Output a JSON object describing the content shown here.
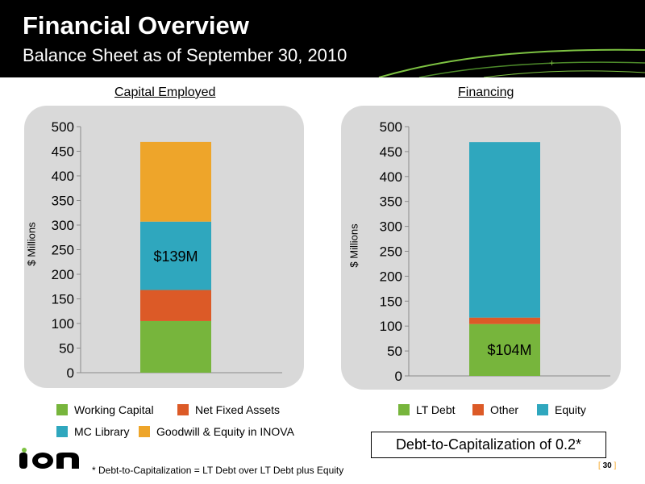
{
  "header": {
    "title": "Financial Overview",
    "subtitle": "Balance Sheet as of September 30, 2010"
  },
  "colors": {
    "working_capital": "#77b53c",
    "net_fixed_assets": "#dc5a27",
    "mc_library": "#2fa7be",
    "goodwill": "#eea52a",
    "panel": "#d9d9d9",
    "header_bg": "#000000",
    "accent_green": "#7dc242"
  },
  "chart_data": [
    {
      "type": "bar",
      "title": "Capital Employed",
      "ylabel": "$ Millions",
      "ylim": [
        0,
        500
      ],
      "yticks": [
        "0",
        "50",
        "100",
        "150",
        "200",
        "250",
        "300",
        "350",
        "400",
        "450",
        "500"
      ],
      "stacked": true,
      "series": [
        {
          "name": "Working Capital",
          "values": [
            105
          ],
          "color": "#77b53c"
        },
        {
          "name": "Net Fixed Assets",
          "values": [
            63
          ],
          "color": "#dc5a27"
        },
        {
          "name": "MC Library",
          "values": [
            139
          ],
          "color": "#2fa7be"
        },
        {
          "name": "Goodwill & Equity in INOVA",
          "values": [
            162
          ],
          "color": "#eea52a"
        }
      ],
      "data_label": "$139M",
      "grid": false
    },
    {
      "type": "bar",
      "title": "Financing",
      "ylabel": "$ Millions",
      "ylim": [
        0,
        500
      ],
      "yticks": [
        "0",
        "50",
        "100",
        "150",
        "200",
        "250",
        "300",
        "350",
        "400",
        "450",
        "500"
      ],
      "stacked": true,
      "series": [
        {
          "name": "LT Debt",
          "values": [
            104
          ],
          "color": "#77b53c"
        },
        {
          "name": "Other",
          "values": [
            13
          ],
          "color": "#dc5a27"
        },
        {
          "name": "Equity",
          "values": [
            352
          ],
          "color": "#2fa7be"
        }
      ],
      "data_label": "$104M",
      "grid": false
    }
  ],
  "debt_to_cap": "Debt-to-Capitalization of 0.2*",
  "footnote": "* Debt-to-Capitalization = LT Debt over LT Debt plus Equity",
  "page": {
    "open": "[",
    "num": "30",
    "close": "]"
  },
  "logo_text": "ION"
}
